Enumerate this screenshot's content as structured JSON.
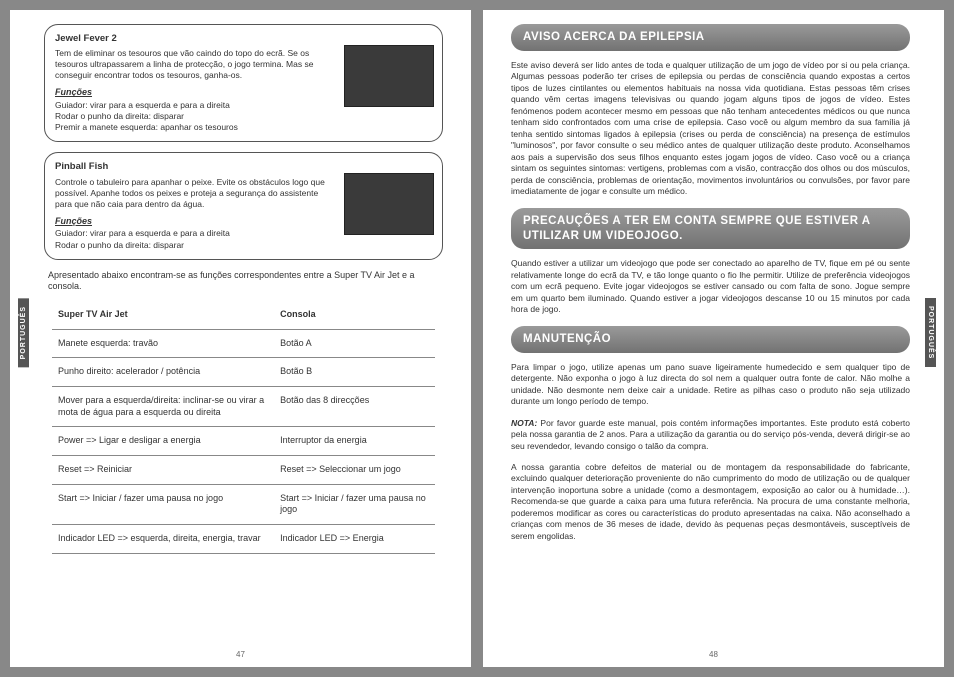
{
  "tabs": {
    "left": "PORTUGUÊS",
    "right": "PORTUGUÊS"
  },
  "left": {
    "game1": {
      "title": "Jewel Fever 2",
      "desc": "Tem de eliminar os tesouros que vão caindo do topo do ecrã. Se os tesouros ultrapassarem a linha de protecção, o jogo termina. Mas se conseguir encontrar todos os tesouros, ganha-os.",
      "funcsH": "Funções",
      "funcs": "Guiador: virar para a esquerda e para a direita\nRodar o punho da direita: disparar\nPremir a manete esquerda: apanhar os tesouros"
    },
    "game2": {
      "title": "Pinball Fish",
      "desc": "Controle o tabuleiro para apanhar o peixe. Evite os obstáculos logo que possível. Apanhe todos os peixes e proteja a segurança do assistente para que não caia para dentro da água.",
      "funcsH": "Funções",
      "funcs": "Guiador: virar para a esquerda e para a direita\nRodar o punho da direita: disparar"
    },
    "intro": "Apresentado abaixo encontram-se as funções correspondentes entre a Super TV Air Jet e a consola.",
    "table": {
      "head": [
        "Super TV Air Jet",
        "Consola"
      ],
      "rows": [
        [
          "Manete esquerda: travão",
          "Botão A"
        ],
        [
          "Punho direito: acelerador / potência",
          "Botão B"
        ],
        [
          "Mover para a esquerda/direita: inclinar-se ou virar a mota de água para a esquerda ou direita",
          "Botão das 8 direcções"
        ],
        [
          "Power => Ligar e desligar a energia",
          "Interruptor da energia"
        ],
        [
          "Reset => Reiniciar",
          "Reset => Seleccionar um jogo"
        ],
        [
          "Start => Iniciar / fazer uma pausa no jogo",
          "Start => Iniciar / fazer uma pausa no jogo"
        ],
        [
          "Indicador LED => esquerda, direita, energia, travar",
          "Indicador LED => Energia"
        ]
      ]
    },
    "pagenum": "47"
  },
  "right": {
    "h1": "AVISO ACERCA DA EPILEPSIA",
    "p1": "Este aviso deverá ser lido antes de toda e qualquer utilização de um jogo de vídeo por si ou pela criança. Algumas pessoas poderão ter crises de epilepsia ou perdas de consciência quando expostas a certos tipos de luzes cintilantes ou elementos habituais na nossa vida quotidiana. Estas pessoas têm crises quando vêm certas imagens televisivas ou quando jogam alguns tipos de jogos de vídeo. Estes fenómenos podem acontecer mesmo em pessoas que não tenham antecedentes médicos ou que nunca tenham sido confrontados com uma crise de epilepsia. Caso você ou algum membro da sua família já tenha sentido sintomas ligados à epilepsia (crises ou perda de consciência) na presença de estímulos \"luminosos\", por favor consulte o seu médico antes de qualquer utilização deste produto. Aconselhamos aos pais a supervisão dos seus filhos enquanto estes jogam jogos de vídeo. Caso você ou a criança sintam os seguintes sintomas: vertigens, problemas com a visão, contracção dos olhos ou dos músculos, perda de consciência, problemas de orientação, movimentos involuntários ou convulsões, por favor pare imediatamente de jogar e consulte um médico.",
    "h2": "PRECAUÇÕES A TER EM CONTA SEMPRE QUE ESTIVER A UTILIZAR UM VIDEOJOGO.",
    "p2": "Quando estiver a utilizar um videojogo que pode ser conectado ao aparelho de TV, fique em pé ou sente relativamente longe do ecrã da TV, e tão longe quanto o fio lhe permitir. Utilize de preferência videojogos com um ecrã pequeno. Evite jogar videojogos se estiver cansado ou com falta de sono. Jogue sempre em um quarto bem iluminado. Quando estiver a jogar videojogos descanse 10 ou 15 minutos por cada hora de jogo.",
    "h3": "MANUTENÇÃO",
    "p3": "Para limpar o jogo, utilize apenas um pano suave ligeiramente humedecido e sem qualquer tipo de detergente. Não exponha o jogo à luz directa do sol nem a qualquer outra fonte de calor. Não molhe a unidade. Não desmonte nem deixe cair a unidade. Retire as pilhas caso o produto não seja utilizado durante um longo período de tempo.",
    "noteLabel": "NOTA:",
    "p4": " Por favor guarde este manual, pois contém informações importantes. Este produto está coberto pela nossa garantia de 2 anos. Para a utilização da garantia ou do serviço pós-venda, deverá dirigir-se ao seu revendedor, levando consigo o talão da compra.",
    "p5": "A nossa garantia cobre defeitos de material ou de montagem da responsabilidade do fabricante, excluindo qualquer deterioração proveniente do não cumprimento do modo de utilização ou de qualquer intervenção inoportuna sobre a unidade (como a desmontagem, exposição ao calor ou à humidade…). Recomenda-se que guarde a caixa para uma futura referência. Na procura de uma constante melhoria, poderemos modificar as cores ou características do produto apresentadas na caixa. Não aconselhado a crianças com menos de 36 meses de idade, devido às pequenas peças desmontáveis, susceptíveis de serem engolidas.",
    "pagenum": "48"
  }
}
